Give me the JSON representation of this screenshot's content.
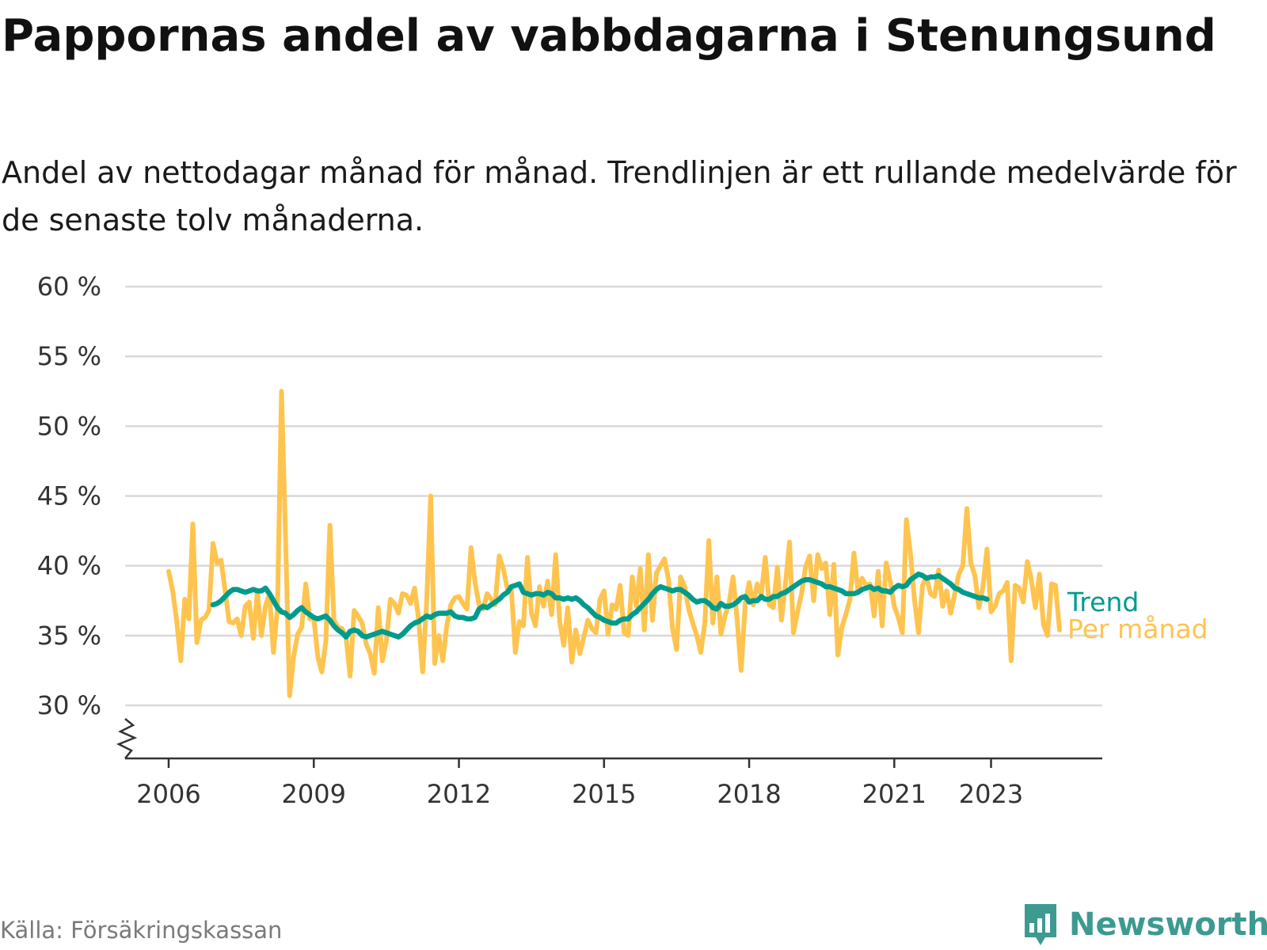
{
  "header": {
    "title": "Pappornas andel av vabbdagarna i Stenungsund",
    "subtitle": "Andel av nettodagar månad för månad. Trendlinjen är ett rullande medelvärde för de senaste tolv månaderna."
  },
  "footer": {
    "source": "Källa: Försäkringskassan",
    "brand": "Newsworthy"
  },
  "colors": {
    "monthly": "#fec44f",
    "trend": "#009b8c",
    "grid": "#d9d9d9",
    "axis": "#333333",
    "brand": "#3c9a91"
  },
  "chart_data": {
    "type": "line",
    "y_tick_labels": [
      "30 %",
      "35 %",
      "40 %",
      "45 %",
      "50 %",
      "55 %",
      "60 %"
    ],
    "y_ticks": [
      30,
      35,
      40,
      45,
      50,
      55,
      60
    ],
    "ylim": [
      26,
      60
    ],
    "y_axis_break": true,
    "x_tick_labels": [
      "2006",
      "2009",
      "2012",
      "2015",
      "2018",
      "2021",
      "2023"
    ],
    "x_ticks": [
      2006,
      2009,
      2012,
      2015,
      2018,
      2021,
      2023
    ],
    "xlim": [
      2005.1,
      2025.3
    ],
    "grid": "horizontal",
    "series": [
      {
        "name": "Per månad",
        "start": 2006.0,
        "step_months": 1,
        "values": [
          39.6,
          38.2,
          36.0,
          33.2,
          37.6,
          36.2,
          43.0,
          34.5,
          36.1,
          36.3,
          36.8,
          41.6,
          40.2,
          40.4,
          38.2,
          36.0,
          35.9,
          36.2,
          35.0,
          37.1,
          37.4,
          34.8,
          38.2,
          35.0,
          37.1,
          38.0,
          33.8,
          37.0,
          52.5,
          42.0,
          30.7,
          33.5,
          35.1,
          35.6,
          38.7,
          36.2,
          36.3,
          33.5,
          32.4,
          34.6,
          42.9,
          36.1,
          35.6,
          35.5,
          34.9,
          32.1,
          36.8,
          36.4,
          35.9,
          34.4,
          33.7,
          32.3,
          37.0,
          33.2,
          34.6,
          37.6,
          37.3,
          36.6,
          38.0,
          37.9,
          37.3,
          38.4,
          36.2,
          32.4,
          37.4,
          45.0,
          33.0,
          35.0,
          33.2,
          35.7,
          37.2,
          37.7,
          37.8,
          37.3,
          36.9,
          41.3,
          38.8,
          37.2,
          36.9,
          38.0,
          37.6,
          37.2,
          40.7,
          39.8,
          38.4,
          38.3,
          33.8,
          36.0,
          35.7,
          40.6,
          36.6,
          35.7,
          38.5,
          37.1,
          38.9,
          36.5,
          40.8,
          36.0,
          34.3,
          37.0,
          33.1,
          35.4,
          33.7,
          34.9,
          36.1,
          35.5,
          35.2,
          37.6,
          38.2,
          35.1,
          37.2,
          36.9,
          38.6,
          35.2,
          35.0,
          39.2,
          37.1,
          39.8,
          35.4,
          40.8,
          36.1,
          39.5,
          40.0,
          40.5,
          39.0,
          35.5,
          34.0,
          39.2,
          38.5,
          36.9,
          35.9,
          35.0,
          33.8,
          35.9,
          41.8,
          35.9,
          39.2,
          35.1,
          36.4,
          37.3,
          39.2,
          36.2,
          32.5,
          37.2,
          38.8,
          37.2,
          38.7,
          37.9,
          40.6,
          37.2,
          37.0,
          39.9,
          36.1,
          38.7,
          41.7,
          35.2,
          36.7,
          38.0,
          39.9,
          40.7,
          37.5,
          40.8,
          39.8,
          40.2,
          36.5,
          40.1,
          33.6,
          35.6,
          36.5,
          37.6,
          40.9,
          38.2,
          39.1,
          38.6,
          38.7,
          36.4,
          39.6,
          35.7,
          40.2,
          38.9,
          37.1,
          36.3,
          35.2,
          43.3,
          40.9,
          37.6,
          35.2,
          38.6,
          39.2,
          38.0,
          37.8,
          39.7,
          37.1,
          38.2,
          36.6,
          38.0,
          39.4,
          40.0,
          44.1,
          40.2,
          39.3,
          37.0,
          38.5,
          41.2,
          36.7,
          37.1,
          38.0,
          38.2,
          38.8,
          33.2,
          38.6,
          38.4,
          37.4,
          40.3,
          39.0,
          37.0,
          39.4,
          35.8,
          35.0,
          38.7,
          38.6,
          35.4
        ]
      },
      {
        "name": "Trend",
        "start": 2006.917,
        "step_months": 1,
        "values": [
          37.2,
          37.3,
          37.5,
          37.8,
          38.1,
          38.3,
          38.3,
          38.2,
          38.1,
          38.2,
          38.3,
          38.2,
          38.2,
          38.4,
          38.0,
          37.5,
          37.0,
          36.7,
          36.6,
          36.3,
          36.5,
          36.8,
          37.0,
          36.7,
          36.5,
          36.3,
          36.2,
          36.3,
          36.4,
          36.1,
          35.7,
          35.4,
          35.2,
          34.9,
          35.3,
          35.4,
          35.3,
          35.0,
          34.9,
          35.0,
          35.1,
          35.2,
          35.3,
          35.2,
          35.1,
          35.0,
          34.9,
          35.1,
          35.4,
          35.7,
          35.9,
          36.0,
          36.2,
          36.4,
          36.3,
          36.5,
          36.6,
          36.6,
          36.6,
          36.7,
          36.4,
          36.3,
          36.3,
          36.2,
          36.2,
          36.3,
          36.9,
          37.1,
          37.0,
          37.2,
          37.4,
          37.6,
          37.9,
          38.1,
          38.5,
          38.6,
          38.7,
          38.1,
          38.0,
          37.9,
          38.0,
          38.0,
          37.9,
          38.1,
          38.0,
          37.7,
          37.7,
          37.6,
          37.7,
          37.6,
          37.7,
          37.5,
          37.2,
          37.0,
          36.7,
          36.4,
          36.3,
          36.1,
          36.0,
          35.9,
          35.9,
          36.1,
          36.2,
          36.2,
          36.5,
          36.7,
          37.0,
          37.3,
          37.6,
          38.0,
          38.3,
          38.5,
          38.4,
          38.3,
          38.2,
          38.3,
          38.3,
          38.1,
          37.9,
          37.6,
          37.4,
          37.5,
          37.5,
          37.3,
          37.0,
          36.9,
          37.3,
          37.1,
          37.1,
          37.2,
          37.4,
          37.7,
          37.8,
          37.4,
          37.5,
          37.5,
          37.8,
          37.6,
          37.6,
          37.8,
          37.8,
          38.0,
          38.1,
          38.3,
          38.5,
          38.7,
          38.9,
          39.0,
          39.0,
          38.9,
          38.8,
          38.7,
          38.5,
          38.5,
          38.4,
          38.3,
          38.2,
          38.0,
          38.0,
          38.0,
          38.1,
          38.3,
          38.4,
          38.5,
          38.3,
          38.4,
          38.2,
          38.2,
          38.1,
          38.4,
          38.6,
          38.5,
          38.6,
          39.0,
          39.2,
          39.4,
          39.3,
          39.1,
          39.2,
          39.2,
          39.3,
          39.1,
          38.9,
          38.7,
          38.4,
          38.3,
          38.1,
          38.0,
          37.9,
          37.8,
          37.7,
          37.7,
          37.6
        ]
      }
    ]
  }
}
